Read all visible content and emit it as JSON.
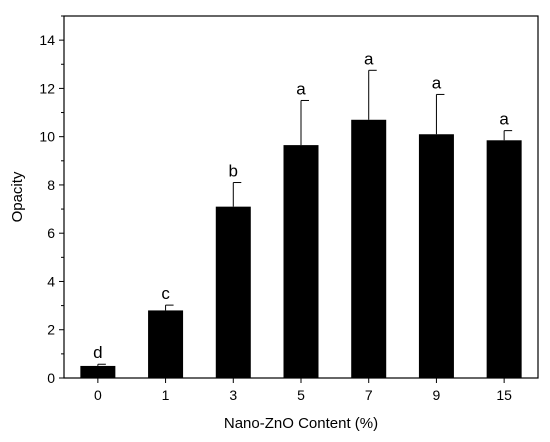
{
  "chart_data": {
    "type": "bar",
    "categories": [
      "0",
      "1",
      "3",
      "5",
      "7",
      "9",
      "15"
    ],
    "values": [
      0.5,
      2.8,
      7.1,
      9.65,
      10.7,
      10.1,
      9.85
    ],
    "errors": [
      0.07,
      0.22,
      1.0,
      1.85,
      2.05,
      1.65,
      0.4
    ],
    "significance": [
      "d",
      "c",
      "b",
      "a",
      "a",
      "a",
      "a"
    ],
    "xlabel": "Nano-ZnO Content (%)",
    "ylabel": "Opacity",
    "ylim": [
      0,
      15
    ],
    "yticks": [
      0,
      2,
      4,
      6,
      8,
      10,
      12,
      14
    ],
    "grid": false,
    "bar_color": "#000000"
  }
}
